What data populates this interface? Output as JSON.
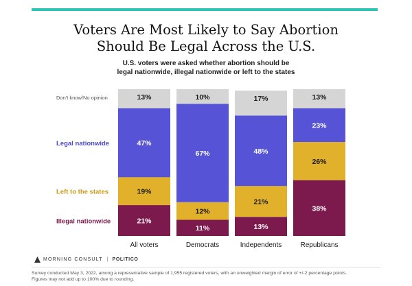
{
  "colors": {
    "accent": "#2cc4b5",
    "dont_know": "#d5d5d5",
    "legal": "#5653d6",
    "states": "#e2b12c",
    "illegal": "#7d1a4d",
    "legal_label": "#4a49c7",
    "states_label": "#c89a15",
    "illegal_label": "#7d1a4d"
  },
  "header": {
    "title_line1": "Voters Are Most Likely to Say Abortion",
    "title_line2": "Should Be Legal Across the U.S.",
    "subtitle_line1": "U.S. voters were asked whether abortion should be",
    "subtitle_line2": "legal nationwide, illegal nationwide or left to the states"
  },
  "chart_data": {
    "type": "bar",
    "stacked": true,
    "categories": [
      "All voters",
      "Democrats",
      "Independents",
      "Republicans"
    ],
    "ylim": [
      0,
      100
    ],
    "series": [
      {
        "name": "Illegal nationwide",
        "values": [
          21,
          11,
          13,
          38
        ],
        "labels": [
          "21%",
          "11%",
          "13%",
          "38%"
        ]
      },
      {
        "name": "Left to the states",
        "values": [
          19,
          12,
          21,
          26
        ],
        "labels": [
          "19%",
          "12%",
          "21%",
          "26%"
        ]
      },
      {
        "name": "Legal nationwide",
        "values": [
          47,
          67,
          48,
          23
        ],
        "labels": [
          "47%",
          "67%",
          "48%",
          "23%"
        ]
      },
      {
        "name": "Don't know/No opinion",
        "values": [
          13,
          10,
          17,
          13
        ],
        "labels": [
          "13%",
          "10%",
          "17%",
          "13%"
        ]
      }
    ],
    "legend_placement": "left"
  },
  "branding": {
    "morning_consult": "MORNING CONSULT",
    "separator": "|",
    "politico": "POLITICO"
  },
  "footnote": {
    "line1": "Survey conducted May 3, 2022, among a representative sample of 1,955 registered voters, with an unweighted margin of error of +/-2 percentage points.",
    "line2": "Figures may not add up to 100% due to rounding."
  }
}
